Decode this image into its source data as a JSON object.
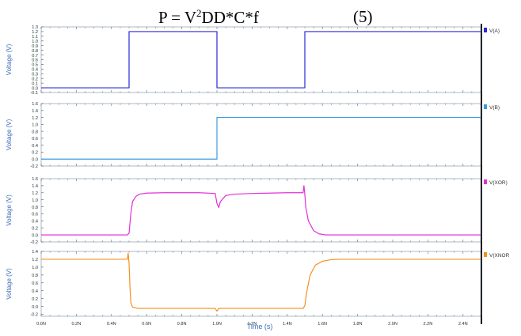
{
  "formula": {
    "lhs": "P = V",
    "superscript": "2",
    "rhs": "DD*C*f",
    "equation_number": "(5)"
  },
  "chart_data": {
    "type": "line",
    "xlabel": "Time (s)",
    "xlim": [
      0,
      2.5
    ],
    "xticks": [
      0,
      0.2,
      0.4,
      0.6,
      0.8,
      1.0,
      1.2,
      1.4,
      1.6,
      1.8,
      2.0,
      2.2,
      2.4
    ],
    "xtick_labels": [
      "0.0N",
      "0.2N",
      "0.4N",
      "0.6N",
      "0.8N",
      "1.0N",
      "1.2N",
      "1.4N",
      "1.6N",
      "1.8N",
      "2.0N",
      "2.2N",
      "2.4N"
    ],
    "grid": false,
    "legend_position": "right",
    "panels": [
      {
        "ylabel": "Voltage (V)",
        "ylim": [
          -0.1,
          1.3
        ],
        "yticks": [
          -0.1,
          0,
          0.1,
          0.2,
          0.3,
          0.4,
          0.5,
          0.6,
          0.7,
          0.8,
          0.9,
          1.0,
          1.1,
          1.2,
          1.3
        ],
        "ytick_labels": [
          "-0.1",
          "0.0",
          "0.1",
          "0.2",
          "0.3",
          "0.4",
          "0.5",
          "0.6",
          "0.7",
          "0.8",
          "0.9",
          "1.0",
          "1.1",
          "1.2",
          "1.3"
        ],
        "series": [
          {
            "name": "V(A)",
            "color": "#2a2ad6",
            "x": [
              0,
              0.5,
              0.5,
              1.0,
              1.0,
              1.5,
              1.5,
              2.5
            ],
            "y": [
              0,
              0,
              1.2,
              1.2,
              0,
              0,
              1.2,
              1.2
            ]
          }
        ]
      },
      {
        "ylabel": "Voltage (V)",
        "ylim": [
          -0.2,
          1.6
        ],
        "yticks": [
          -0.2,
          0,
          0.2,
          0.4,
          0.6,
          0.8,
          1.0,
          1.2,
          1.4,
          1.6
        ],
        "ytick_labels": [
          "-0.2",
          "0.0",
          "0.2",
          "0.4",
          "0.6",
          "0.8",
          "1.0",
          "1.2",
          "1.4",
          "1.6"
        ],
        "series": [
          {
            "name": "V(B)",
            "color": "#3d9be0",
            "x": [
              0,
              1.0,
              1.0,
              2.5
            ],
            "y": [
              0,
              0,
              1.2,
              1.2
            ]
          }
        ]
      },
      {
        "ylabel": "Voltage (V)",
        "ylim": [
          -0.2,
          1.6
        ],
        "yticks": [
          -0.2,
          0,
          0.2,
          0.4,
          0.6,
          0.8,
          1.0,
          1.2,
          1.4,
          1.6
        ],
        "ytick_labels": [
          "-0.2",
          "0.0",
          "0.2",
          "0.4",
          "0.6",
          "0.8",
          "1.0",
          "1.2",
          "1.4",
          "1.6"
        ],
        "series": [
          {
            "name": "V(XOR)",
            "color": "#e030d8",
            "x": [
              0,
              0.49,
              0.5,
              0.51,
              0.52,
              0.54,
              0.56,
              0.6,
              0.7,
              0.8,
              0.9,
              0.99,
              1.0,
              1.01,
              1.02,
              1.05,
              1.1,
              1.2,
              1.3,
              1.4,
              1.49,
              1.495,
              1.5,
              1.505,
              1.52,
              1.55,
              1.58,
              1.62,
              1.7,
              2.5
            ],
            "y": [
              0,
              0,
              0.05,
              0.6,
              0.95,
              1.1,
              1.16,
              1.19,
              1.2,
              1.2,
              1.2,
              1.18,
              0.9,
              0.78,
              0.95,
              1.12,
              1.16,
              1.18,
              1.19,
              1.2,
              1.2,
              1.4,
              1.15,
              0.8,
              0.4,
              0.12,
              0.03,
              0.0,
              0,
              0
            ]
          }
        ]
      },
      {
        "ylabel": "Voltage (V)",
        "ylim": [
          -0.25,
          1.4
        ],
        "yticks": [
          -0.2,
          0,
          0.2,
          0.4,
          0.6,
          0.8,
          1.0,
          1.2,
          1.4
        ],
        "ytick_labels": [
          "-0.2",
          "0.0",
          "0.2",
          "0.4",
          "0.6",
          "0.8",
          "1.0",
          "1.2",
          "1.4"
        ],
        "series": [
          {
            "name": "V(XNOR",
            "color": "#f4901e",
            "x": [
              0,
              0.49,
              0.495,
              0.5,
              0.505,
              0.51,
              0.52,
              0.55,
              0.6,
              0.8,
              0.99,
              1.0,
              1.01,
              1.4,
              1.49,
              1.5,
              1.51,
              1.53,
              1.56,
              1.6,
              1.65,
              1.7,
              2.5
            ],
            "y": [
              1.2,
              1.2,
              1.35,
              1.1,
              0.5,
              0.1,
              -0.02,
              -0.05,
              -0.05,
              -0.05,
              -0.05,
              -0.12,
              -0.05,
              -0.05,
              -0.05,
              0.02,
              0.35,
              0.8,
              1.05,
              1.15,
              1.19,
              1.2,
              1.2
            ]
          }
        ]
      }
    ]
  }
}
